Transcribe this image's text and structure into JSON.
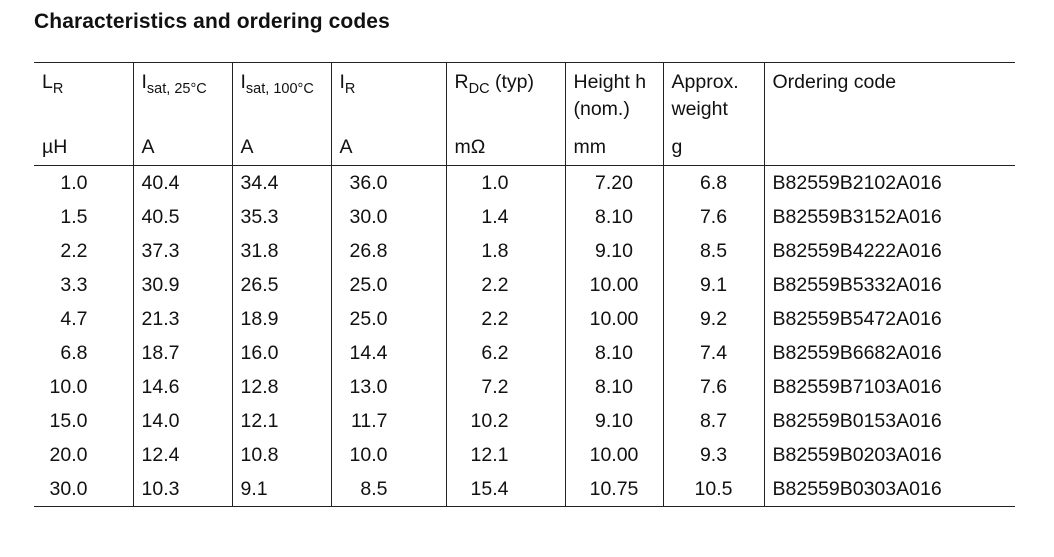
{
  "title": "Characteristics and ordering codes",
  "columns": [
    {
      "symbol": "L",
      "sub": "R",
      "unit": "µH"
    },
    {
      "symbol": "I",
      "sub": "sat, 25°C",
      "unit": "A"
    },
    {
      "symbol": "I",
      "sub": "sat, 100°C",
      "unit": "A"
    },
    {
      "symbol": "I",
      "sub": "R",
      "unit": "A"
    },
    {
      "symbol": "R",
      "sub": "DC",
      "suffix": " (typ)",
      "unit": "mΩ"
    },
    {
      "line1": "Height h",
      "line2": "(nom.)",
      "unit": "mm"
    },
    {
      "line1": "Approx.",
      "line2": "weight",
      "unit": "g"
    },
    {
      "line1": "Ordering code",
      "unit": ""
    }
  ],
  "rows": [
    [
      "1.0",
      "40.4",
      "34.4",
      "36.0",
      "1.0",
      "7.20",
      "6.8",
      "B82559B2102A016"
    ],
    [
      "1.5",
      "40.5",
      "35.3",
      "30.0",
      "1.4",
      "8.10",
      "7.6",
      "B82559B3152A016"
    ],
    [
      "2.2",
      "37.3",
      "31.8",
      "26.8",
      "1.8",
      "9.10",
      "8.5",
      "B82559B4222A016"
    ],
    [
      "3.3",
      "30.9",
      "26.5",
      "25.0",
      "2.2",
      "10.00",
      "9.1",
      "B82559B5332A016"
    ],
    [
      "4.7",
      "21.3",
      "18.9",
      "25.0",
      "2.2",
      "10.00",
      "9.2",
      "B82559B5472A016"
    ],
    [
      "6.8",
      "18.7",
      "16.0",
      "14.4",
      "6.2",
      "8.10",
      "7.4",
      "B82559B6682A016"
    ],
    [
      "10.0",
      "14.6",
      "12.8",
      "13.0",
      "7.2",
      "8.10",
      "7.6",
      "B82559B7103A016"
    ],
    [
      "15.0",
      "14.0",
      "12.1",
      "11.7",
      "10.2",
      "9.10",
      "8.7",
      "B82559B0153A016"
    ],
    [
      "20.0",
      "12.4",
      "10.8",
      "10.0",
      "12.1",
      "10.00",
      "9.3",
      "B82559B0203A016"
    ],
    [
      "30.0",
      "10.3",
      "9.1",
      "8.5",
      "15.4",
      "10.75",
      "10.5",
      "B82559B0303A016"
    ]
  ]
}
